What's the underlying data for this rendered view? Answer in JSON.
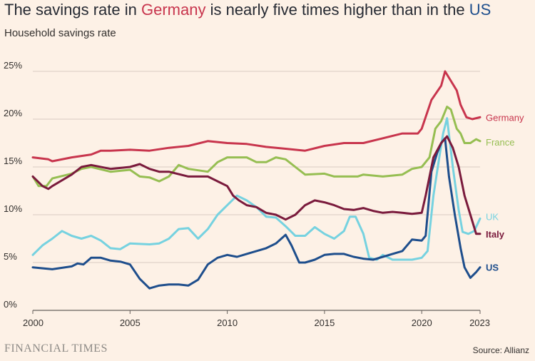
{
  "header": {
    "title_prefix": "The savings rate in ",
    "title_germany": "Germany",
    "title_middle": " is nearly five times higher than in the ",
    "title_us": "US",
    "subtitle": "Household savings rate"
  },
  "footer": {
    "brand": "FINANCIAL TIMES",
    "source": "Source: Allianz"
  },
  "chart_data": {
    "type": "line",
    "title": "The savings rate in Germany is nearly five times higher than in the US",
    "subtitle": "Household savings rate",
    "xlim": [
      2000,
      2023
    ],
    "ylim": [
      0,
      25
    ],
    "x_ticks": [
      2000,
      2005,
      2010,
      2015,
      2020,
      2023
    ],
    "y_ticks": [
      0,
      5,
      10,
      15,
      20,
      25
    ],
    "y_tick_labels": [
      "0%",
      "5%",
      "10%",
      "15%",
      "20%",
      "25%"
    ],
    "grid": "horizontal",
    "legend": "direct labels at right end of lines",
    "series": [
      {
        "name": "Germany",
        "color": "#c8354d",
        "points": [
          [
            2000,
            16.0
          ],
          [
            2000.8,
            15.8
          ],
          [
            2001,
            15.6
          ],
          [
            2002,
            16.0
          ],
          [
            2003,
            16.3
          ],
          [
            2003.5,
            16.7
          ],
          [
            2004,
            16.7
          ],
          [
            2005,
            16.8
          ],
          [
            2006,
            16.7
          ],
          [
            2007,
            17.0
          ],
          [
            2008,
            17.2
          ],
          [
            2009,
            17.7
          ],
          [
            2010,
            17.5
          ],
          [
            2011,
            17.4
          ],
          [
            2012,
            17.1
          ],
          [
            2013,
            16.9
          ],
          [
            2014,
            16.7
          ],
          [
            2015,
            17.2
          ],
          [
            2016,
            17.5
          ],
          [
            2017,
            17.5
          ],
          [
            2018,
            18.0
          ],
          [
            2019,
            18.5
          ],
          [
            2019.8,
            18.5
          ],
          [
            2020,
            19.0
          ],
          [
            2020.5,
            22.0
          ],
          [
            2021,
            23.5
          ],
          [
            2021.2,
            25.0
          ],
          [
            2021.5,
            24.0
          ],
          [
            2021.8,
            23.0
          ],
          [
            2022,
            21.5
          ],
          [
            2022.3,
            20.2
          ],
          [
            2022.6,
            20.0
          ],
          [
            2023,
            20.2
          ]
        ]
      },
      {
        "name": "France",
        "color": "#96be52",
        "points": [
          [
            2000,
            14.0
          ],
          [
            2000.3,
            13.0
          ],
          [
            2000.7,
            13.0
          ],
          [
            2001,
            13.8
          ],
          [
            2002,
            14.3
          ],
          [
            2002.5,
            14.8
          ],
          [
            2003,
            15.0
          ],
          [
            2004,
            14.5
          ],
          [
            2005,
            14.7
          ],
          [
            2005.5,
            14.0
          ],
          [
            2006,
            13.9
          ],
          [
            2006.5,
            13.5
          ],
          [
            2007,
            14.0
          ],
          [
            2007.5,
            15.2
          ],
          [
            2008,
            14.8
          ],
          [
            2009,
            14.5
          ],
          [
            2009.5,
            15.5
          ],
          [
            2010,
            16.0
          ],
          [
            2011,
            16.0
          ],
          [
            2011.5,
            15.5
          ],
          [
            2012,
            15.5
          ],
          [
            2012.5,
            16.0
          ],
          [
            2013,
            15.8
          ],
          [
            2013.5,
            15.0
          ],
          [
            2014,
            14.2
          ],
          [
            2015,
            14.3
          ],
          [
            2015.5,
            14.0
          ],
          [
            2016,
            14.0
          ],
          [
            2016.7,
            14.0
          ],
          [
            2017,
            14.2
          ],
          [
            2018,
            14.0
          ],
          [
            2019,
            14.2
          ],
          [
            2019.5,
            14.8
          ],
          [
            2020,
            15.0
          ],
          [
            2020.4,
            16.0
          ],
          [
            2020.7,
            19.0
          ],
          [
            2021,
            19.8
          ],
          [
            2021.3,
            21.3
          ],
          [
            2021.5,
            21.0
          ],
          [
            2021.8,
            19.0
          ],
          [
            2022,
            18.5
          ],
          [
            2022.2,
            17.5
          ],
          [
            2022.5,
            17.5
          ],
          [
            2022.8,
            17.9
          ],
          [
            2023,
            17.7
          ]
        ]
      },
      {
        "name": "UK",
        "color": "#76d2e0",
        "points": [
          [
            2000,
            5.8
          ],
          [
            2000.5,
            6.8
          ],
          [
            2001,
            7.5
          ],
          [
            2001.5,
            8.3
          ],
          [
            2002,
            7.8
          ],
          [
            2002.5,
            7.5
          ],
          [
            2003,
            7.8
          ],
          [
            2003.5,
            7.3
          ],
          [
            2004,
            6.5
          ],
          [
            2004.5,
            6.4
          ],
          [
            2005,
            7.0
          ],
          [
            2006,
            6.9
          ],
          [
            2006.5,
            7.0
          ],
          [
            2007,
            7.5
          ],
          [
            2007.5,
            8.5
          ],
          [
            2008,
            8.6
          ],
          [
            2008.5,
            7.5
          ],
          [
            2009,
            8.5
          ],
          [
            2009.5,
            10.0
          ],
          [
            2010,
            11.0
          ],
          [
            2010.5,
            12.0
          ],
          [
            2011,
            11.5
          ],
          [
            2011.5,
            10.8
          ],
          [
            2012,
            9.8
          ],
          [
            2012.5,
            9.7
          ],
          [
            2013,
            8.8
          ],
          [
            2013.5,
            7.8
          ],
          [
            2014,
            7.8
          ],
          [
            2014.5,
            8.7
          ],
          [
            2015,
            8.0
          ],
          [
            2015.5,
            7.5
          ],
          [
            2016,
            8.3
          ],
          [
            2016.3,
            9.8
          ],
          [
            2016.6,
            9.8
          ],
          [
            2017,
            8.0
          ],
          [
            2017.3,
            5.5
          ],
          [
            2017.7,
            5.3
          ],
          [
            2018,
            5.8
          ],
          [
            2018.5,
            5.3
          ],
          [
            2019,
            5.3
          ],
          [
            2019.5,
            5.3
          ],
          [
            2020,
            5.5
          ],
          [
            2020.3,
            6.2
          ],
          [
            2020.6,
            12.0
          ],
          [
            2020.9,
            16.0
          ],
          [
            2021.1,
            18.5
          ],
          [
            2021.3,
            20.1
          ],
          [
            2021.6,
            15.0
          ],
          [
            2021.9,
            10.5
          ],
          [
            2022.1,
            8.2
          ],
          [
            2022.4,
            8.0
          ],
          [
            2022.7,
            8.3
          ],
          [
            2023,
            9.6
          ]
        ]
      },
      {
        "name": "Italy",
        "color": "#7a1a3c",
        "points": [
          [
            2000,
            14.0
          ],
          [
            2000.5,
            13.0
          ],
          [
            2000.8,
            12.7
          ],
          [
            2001,
            13.0
          ],
          [
            2002,
            14.2
          ],
          [
            2002.5,
            15.0
          ],
          [
            2003,
            15.2
          ],
          [
            2004,
            14.8
          ],
          [
            2005,
            15.0
          ],
          [
            2005.5,
            15.3
          ],
          [
            2006,
            14.8
          ],
          [
            2006.5,
            14.5
          ],
          [
            2007,
            14.5
          ],
          [
            2008,
            14.0
          ],
          [
            2009,
            14.0
          ],
          [
            2009.5,
            13.5
          ],
          [
            2010,
            13.0
          ],
          [
            2010.3,
            12.0
          ],
          [
            2010.6,
            11.5
          ],
          [
            2011,
            11.0
          ],
          [
            2011.5,
            10.8
          ],
          [
            2012,
            10.2
          ],
          [
            2012.5,
            10.0
          ],
          [
            2013,
            9.5
          ],
          [
            2013.5,
            10.0
          ],
          [
            2014,
            11.0
          ],
          [
            2014.5,
            11.5
          ],
          [
            2015,
            11.3
          ],
          [
            2015.5,
            11.0
          ],
          [
            2016,
            10.6
          ],
          [
            2016.5,
            10.5
          ],
          [
            2017,
            10.7
          ],
          [
            2017.5,
            10.4
          ],
          [
            2018,
            10.2
          ],
          [
            2018.5,
            10.3
          ],
          [
            2019,
            10.2
          ],
          [
            2019.5,
            10.1
          ],
          [
            2020,
            10.2
          ],
          [
            2020.2,
            12.0
          ],
          [
            2020.6,
            16.0
          ],
          [
            2021,
            17.5
          ],
          [
            2021.3,
            18.2
          ],
          [
            2021.6,
            17.0
          ],
          [
            2021.9,
            15.0
          ],
          [
            2022.2,
            12.0
          ],
          [
            2022.5,
            10.0
          ],
          [
            2022.8,
            8.0
          ],
          [
            2023,
            8.0
          ]
        ]
      },
      {
        "name": "US",
        "color": "#1e4e8c",
        "points": [
          [
            2000,
            4.5
          ],
          [
            2001,
            4.3
          ],
          [
            2002,
            4.6
          ],
          [
            2002.3,
            4.9
          ],
          [
            2002.6,
            4.8
          ],
          [
            2003,
            5.5
          ],
          [
            2003.5,
            5.5
          ],
          [
            2004,
            5.2
          ],
          [
            2004.5,
            5.1
          ],
          [
            2005,
            4.8
          ],
          [
            2005.5,
            3.3
          ],
          [
            2006,
            2.3
          ],
          [
            2006.5,
            2.6
          ],
          [
            2007,
            2.7
          ],
          [
            2007.5,
            2.7
          ],
          [
            2008,
            2.6
          ],
          [
            2008.5,
            3.2
          ],
          [
            2009,
            4.8
          ],
          [
            2009.5,
            5.5
          ],
          [
            2010,
            5.8
          ],
          [
            2010.5,
            5.6
          ],
          [
            2011,
            5.9
          ],
          [
            2011.5,
            6.2
          ],
          [
            2012,
            6.5
          ],
          [
            2012.5,
            7.0
          ],
          [
            2013,
            7.9
          ],
          [
            2013.3,
            6.8
          ],
          [
            2013.7,
            5.0
          ],
          [
            2014,
            5.0
          ],
          [
            2014.5,
            5.3
          ],
          [
            2015,
            5.8
          ],
          [
            2015.5,
            5.9
          ],
          [
            2016,
            5.9
          ],
          [
            2016.5,
            5.6
          ],
          [
            2017,
            5.4
          ],
          [
            2017.5,
            5.3
          ],
          [
            2018,
            5.6
          ],
          [
            2018.5,
            5.9
          ],
          [
            2019,
            6.2
          ],
          [
            2019.5,
            7.4
          ],
          [
            2020,
            7.3
          ],
          [
            2020.2,
            7.8
          ],
          [
            2020.5,
            14.5
          ],
          [
            2020.8,
            16.5
          ],
          [
            2021,
            17.5
          ],
          [
            2021.2,
            18.0
          ],
          [
            2021.4,
            14.0
          ],
          [
            2021.7,
            10.0
          ],
          [
            2022,
            6.5
          ],
          [
            2022.2,
            4.5
          ],
          [
            2022.5,
            3.4
          ],
          [
            2022.8,
            4.0
          ],
          [
            2023,
            4.5
          ]
        ]
      }
    ]
  }
}
